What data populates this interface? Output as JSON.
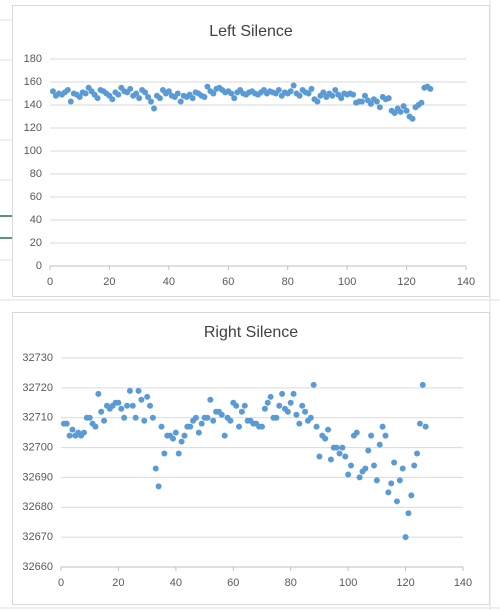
{
  "chart_data": [
    {
      "type": "scatter",
      "title": "Left Silence",
      "color": "#5b9bd5",
      "grid": true,
      "x": [
        1,
        2,
        3,
        4,
        5,
        6,
        7,
        8,
        9,
        10,
        11,
        12,
        13,
        14,
        15,
        16,
        17,
        18,
        19,
        20,
        21,
        22,
        23,
        24,
        25,
        26,
        27,
        28,
        29,
        30,
        31,
        32,
        33,
        34,
        35,
        36,
        37,
        38,
        39,
        40,
        41,
        42,
        43,
        44,
        45,
        46,
        47,
        48,
        49,
        50,
        51,
        52,
        53,
        54,
        55,
        56,
        57,
        58,
        59,
        60,
        61,
        62,
        63,
        64,
        65,
        66,
        67,
        68,
        69,
        70,
        71,
        72,
        73,
        74,
        75,
        76,
        77,
        78,
        79,
        80,
        81,
        82,
        83,
        84,
        85,
        86,
        87,
        88,
        89,
        90,
        91,
        92,
        93,
        94,
        95,
        96,
        97,
        98,
        99,
        100,
        101,
        102,
        103,
        104,
        105,
        106,
        107,
        108,
        109,
        110,
        111,
        112,
        113,
        114,
        115,
        116,
        117,
        118,
        119,
        120,
        121,
        122,
        123,
        124,
        125,
        126,
        127,
        128
      ],
      "values": [
        152,
        148,
        150,
        149,
        151,
        153,
        143,
        150,
        149,
        147,
        151,
        150,
        155,
        152,
        149,
        146,
        153,
        152,
        150,
        148,
        145,
        151,
        149,
        155,
        152,
        151,
        154,
        148,
        150,
        146,
        153,
        151,
        147,
        143,
        137,
        148,
        146,
        153,
        150,
        152,
        148,
        147,
        150,
        143,
        148,
        147,
        149,
        146,
        151,
        150,
        148,
        147,
        156,
        152,
        150,
        154,
        155,
        153,
        151,
        152,
        150,
        146,
        151,
        153,
        150,
        149,
        151,
        152,
        150,
        149,
        151,
        153,
        150,
        152,
        151,
        150,
        153,
        148,
        151,
        150,
        152,
        157,
        150,
        148,
        153,
        151,
        150,
        154,
        145,
        143,
        148,
        151,
        147,
        150,
        148,
        153,
        149,
        146,
        150,
        149,
        150,
        149,
        142,
        143,
        143,
        148,
        144,
        141,
        145,
        143,
        138,
        147,
        145,
        146,
        135,
        133,
        137,
        134,
        139,
        135,
        130,
        128,
        138,
        140,
        142,
        155,
        156,
        154
      ],
      "xlim": [
        0,
        140
      ],
      "xticks": [
        0,
        20,
        40,
        60,
        80,
        100,
        120,
        140
      ],
      "ylim": [
        0,
        180
      ],
      "yticks": [
        0,
        20,
        40,
        60,
        80,
        100,
        120,
        140,
        160,
        180
      ]
    },
    {
      "type": "scatter",
      "title": "Right Silence",
      "color": "#5b9bd5",
      "grid": true,
      "x": [
        1,
        2,
        3,
        4,
        5,
        6,
        7,
        8,
        9,
        10,
        11,
        12,
        13,
        14,
        15,
        16,
        17,
        18,
        19,
        20,
        21,
        22,
        23,
        24,
        25,
        26,
        27,
        28,
        29,
        30,
        31,
        32,
        33,
        34,
        35,
        36,
        37,
        38,
        39,
        40,
        41,
        42,
        43,
        44,
        45,
        46,
        47,
        48,
        49,
        50,
        51,
        52,
        53,
        54,
        55,
        56,
        57,
        58,
        59,
        60,
        61,
        62,
        63,
        64,
        65,
        66,
        67,
        68,
        69,
        70,
        71,
        72,
        73,
        74,
        75,
        76,
        77,
        78,
        79,
        80,
        81,
        82,
        83,
        84,
        85,
        86,
        87,
        88,
        89,
        90,
        91,
        92,
        93,
        94,
        95,
        96,
        97,
        98,
        99,
        100,
        101,
        102,
        103,
        104,
        105,
        106,
        107,
        108,
        109,
        110,
        111,
        112,
        113,
        114,
        115,
        116,
        117,
        118,
        119,
        120,
        121,
        122,
        123,
        124,
        125,
        126,
        127
      ],
      "values": [
        32708,
        32708,
        32704,
        32706,
        32704,
        32705,
        32704,
        32705,
        32710,
        32710,
        32708,
        32707,
        32718,
        32712,
        32709,
        32714,
        32713,
        32714,
        32715,
        32715,
        32713,
        32710,
        32714,
        32719,
        32714,
        32710,
        32719,
        32716,
        32709,
        32717,
        32714,
        32710,
        32693,
        32687,
        32707,
        32698,
        32704,
        32704,
        32703,
        32705,
        32698,
        32702,
        32704,
        32707,
        32707,
        32709,
        32710,
        32705,
        32708,
        32710,
        32710,
        32716,
        32709,
        32712,
        32712,
        32711,
        32704,
        32710,
        32709,
        32715,
        32714,
        32707,
        32712,
        32714,
        32709,
        32709,
        32708,
        32708,
        32707,
        32707,
        32713,
        32715,
        32717,
        32710,
        32710,
        32714,
        32718,
        32713,
        32712,
        32715,
        32718,
        32711,
        32708,
        32714,
        32712,
        32709,
        32710,
        32721,
        32707,
        32697,
        32704,
        32703,
        32706,
        32696,
        32700,
        32700,
        32698,
        32700,
        32697,
        32691,
        32694,
        32704,
        32705,
        32690,
        32692,
        32693,
        32699,
        32704,
        32694,
        32689,
        32701,
        32707,
        32704,
        32685,
        32688,
        32695,
        32682,
        32689,
        32693,
        32670,
        32678,
        32684,
        32694,
        32698,
        32708,
        32721,
        32707
      ],
      "xlim": [
        0,
        140
      ],
      "xticks": [
        0,
        20,
        40,
        60,
        80,
        100,
        120,
        140
      ],
      "ylim": [
        32660,
        32730
      ],
      "yticks": [
        32660,
        32670,
        32680,
        32690,
        32700,
        32710,
        32720,
        32730
      ]
    }
  ]
}
